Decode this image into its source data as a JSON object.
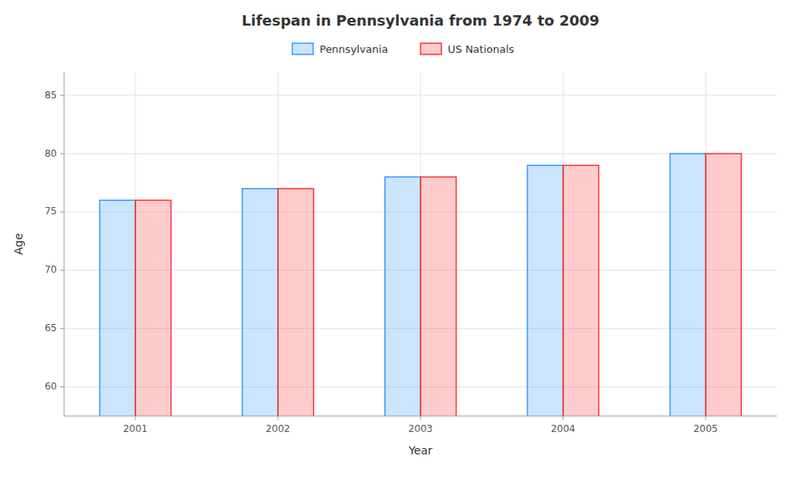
{
  "chart_data": {
    "type": "bar",
    "title": "Lifespan in Pennsylvania from 1974 to 2009",
    "x_label": "Year",
    "y_label": "Age",
    "categories": [
      "2001",
      "2002",
      "2003",
      "2004",
      "2005"
    ],
    "series": [
      {
        "name": "Pennsylvania",
        "color": "#3399ff",
        "values": [
          76,
          77,
          78,
          79,
          80
        ]
      },
      {
        "name": "US Nationals",
        "color": "#ff3333",
        "values": [
          76,
          77,
          78,
          79,
          80
        ]
      }
    ],
    "ylim": [
      57.5,
      87
    ],
    "yticks": [
      60,
      65,
      70,
      75,
      80,
      85
    ],
    "grid": true,
    "legend": "top"
  }
}
